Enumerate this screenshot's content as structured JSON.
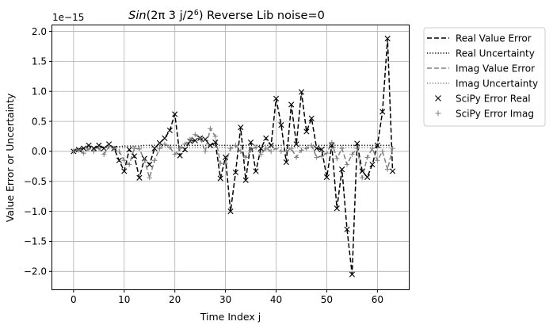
{
  "chart_data": {
    "type": "line",
    "title_main": "Sin(2π 3 j/2",
    "title_exp": "6",
    "title_rest": ") Reverse Lib noise=0",
    "xlabel": "Time Index j",
    "ylabel": "Value Error or Uncertainty",
    "offset_text": "1e−15",
    "scale_exponent": -15,
    "xlim": [
      -4.2,
      66.2
    ],
    "ylim": [
      -2.3,
      2.1
    ],
    "xticks": [
      0,
      10,
      20,
      30,
      40,
      50,
      60
    ],
    "yticks": [
      -2.0,
      -1.5,
      -1.0,
      -0.5,
      0.0,
      0.5,
      1.0,
      1.5,
      2.0
    ],
    "ytick_labels": [
      "−2.0",
      "−1.5",
      "−1.0",
      "−0.5",
      "0.0",
      "0.5",
      "1.0",
      "1.5",
      "2.0"
    ],
    "grid": true,
    "legend_position": "outside-top-right",
    "x": [
      0,
      1,
      2,
      3,
      4,
      5,
      6,
      7,
      8,
      9,
      10,
      11,
      12,
      13,
      14,
      15,
      16,
      17,
      18,
      19,
      20,
      21,
      22,
      23,
      24,
      25,
      26,
      27,
      28,
      29,
      30,
      31,
      32,
      33,
      34,
      35,
      36,
      37,
      38,
      39,
      40,
      41,
      42,
      43,
      44,
      45,
      46,
      47,
      48,
      49,
      50,
      51,
      52,
      53,
      54,
      55,
      56,
      57,
      58,
      59,
      60,
      61,
      62,
      63
    ],
    "series": [
      {
        "name": "Real Value Error",
        "style": "dashed",
        "color": "#000000",
        "values": [
          0.0,
          0.03,
          0.05,
          0.1,
          0.05,
          0.1,
          0.05,
          0.12,
          0.05,
          -0.15,
          -0.33,
          0.03,
          -0.08,
          -0.44,
          -0.12,
          -0.22,
          0.05,
          0.14,
          0.22,
          0.35,
          0.62,
          -0.07,
          0.03,
          0.17,
          0.18,
          0.22,
          0.2,
          0.1,
          0.15,
          -0.45,
          -0.1,
          -1.0,
          -0.35,
          0.4,
          -0.48,
          0.15,
          -0.33,
          0.05,
          0.22,
          0.1,
          0.88,
          0.44,
          -0.18,
          0.78,
          0.12,
          0.99,
          0.33,
          0.55,
          0.05,
          0.03,
          -0.43,
          0.1,
          -0.95,
          -0.3,
          -1.3,
          -2.05,
          0.13,
          -0.33,
          -0.43,
          -0.22,
          0.1,
          0.66,
          1.88,
          -0.33
        ]
      },
      {
        "name": "Real Uncertainty",
        "style": "dotted",
        "color": "#000000",
        "values": [
          0.03,
          0.04,
          0.05,
          0.06,
          0.06,
          0.07,
          0.07,
          0.08,
          0.08,
          0.08,
          0.09,
          0.09,
          0.09,
          0.09,
          0.1,
          0.1,
          0.1,
          0.1,
          0.1,
          0.1,
          0.1,
          0.1,
          0.1,
          0.1,
          0.1,
          0.1,
          0.1,
          0.1,
          0.1,
          0.1,
          0.1,
          0.1,
          0.1,
          0.1,
          0.1,
          0.1,
          0.1,
          0.1,
          0.1,
          0.1,
          0.1,
          0.1,
          0.1,
          0.1,
          0.1,
          0.1,
          0.1,
          0.1,
          0.1,
          0.1,
          0.1,
          0.1,
          0.1,
          0.1,
          0.1,
          0.1,
          0.1,
          0.1,
          0.1,
          0.1,
          0.1,
          0.1,
          0.1,
          0.1
        ]
      },
      {
        "name": "Imag Value Error",
        "style": "dashed",
        "color": "#808080",
        "values": [
          0.0,
          0.02,
          -0.03,
          0.04,
          0.0,
          0.05,
          -0.05,
          0.08,
          0.05,
          0.0,
          -0.15,
          -0.22,
          0.05,
          0.04,
          -0.15,
          -0.44,
          -0.15,
          0.05,
          0.12,
          0.07,
          -0.05,
          0.05,
          0.12,
          0.2,
          0.28,
          0.22,
          0.0,
          0.38,
          0.25,
          -0.2,
          -0.2,
          0.05,
          0.1,
          0.0,
          -0.1,
          0.02,
          0.07,
          -0.05,
          0.05,
          0.0,
          0.05,
          0.0,
          0.0,
          0.05,
          -0.1,
          0.02,
          0.05,
          0.1,
          -0.1,
          -0.08,
          -0.03,
          0.15,
          -0.12,
          0.05,
          -0.22,
          -0.05,
          0.05,
          -0.44,
          -0.1,
          0.05,
          -0.15,
          0.0,
          -0.3,
          0.05
        ]
      },
      {
        "name": "Imag Uncertainty",
        "style": "dotted",
        "color": "#808080",
        "values": [
          0.03,
          0.03,
          0.04,
          0.05,
          0.05,
          0.05,
          0.06,
          0.06,
          0.06,
          0.06,
          0.06,
          0.06,
          0.06,
          0.06,
          0.06,
          0.06,
          0.06,
          0.06,
          0.06,
          0.06,
          0.06,
          0.06,
          0.06,
          0.06,
          0.06,
          0.06,
          0.06,
          0.06,
          0.06,
          0.06,
          0.06,
          0.06,
          0.06,
          0.06,
          0.06,
          0.06,
          0.06,
          0.06,
          0.06,
          0.06,
          0.06,
          0.06,
          0.06,
          0.06,
          0.06,
          0.06,
          0.06,
          0.06,
          0.06,
          0.06,
          0.06,
          0.06,
          0.06,
          0.06,
          0.06,
          0.06,
          0.06,
          0.06,
          0.06,
          0.06,
          0.06,
          0.06,
          0.06,
          0.06
        ]
      },
      {
        "name": "SciPy Error Real",
        "style": "marker-x",
        "color": "#000000",
        "source": "Real Value Error"
      },
      {
        "name": "SciPy Error Imag",
        "style": "marker-plus",
        "color": "#808080",
        "source": "Imag Value Error"
      }
    ]
  }
}
